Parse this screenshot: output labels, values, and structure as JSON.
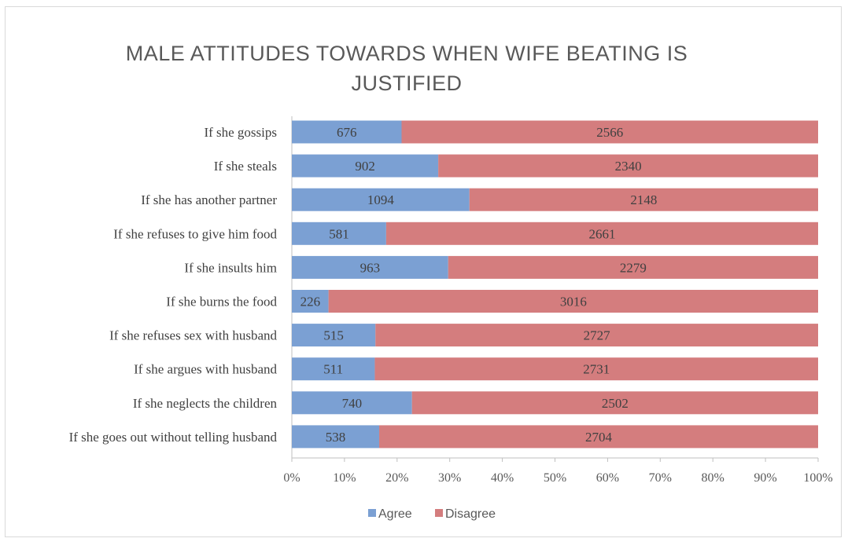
{
  "chart_data": {
    "type": "bar",
    "orientation": "horizontal",
    "stacked_percent": true,
    "title": "MALE ATTITUDES TOWARDS WHEN WIFE BEATING IS\nJUSTIFIED",
    "categories": [
      "If she gossips",
      "If she steals",
      "If she has another partner",
      "If she refuses to give him food",
      "If she insults him",
      "If she burns the food",
      "If she refuses sex with husband",
      "If she argues with husband",
      "If she neglects the children",
      "If she goes out without telling husband"
    ],
    "series": [
      {
        "name": "Agree",
        "color": "#7ba0d3",
        "values": [
          676,
          902,
          1094,
          581,
          963,
          226,
          515,
          511,
          740,
          538
        ]
      },
      {
        "name": "Disagree",
        "color": "#d47d7e",
        "values": [
          2566,
          2340,
          2148,
          2661,
          2279,
          3016,
          2727,
          2731,
          2502,
          2704
        ]
      }
    ],
    "xlim": [
      0,
      100
    ],
    "x_ticks": [
      "0%",
      "10%",
      "20%",
      "30%",
      "40%",
      "50%",
      "60%",
      "70%",
      "80%",
      "90%",
      "100%"
    ],
    "legend_position": "bottom",
    "grid": false
  }
}
